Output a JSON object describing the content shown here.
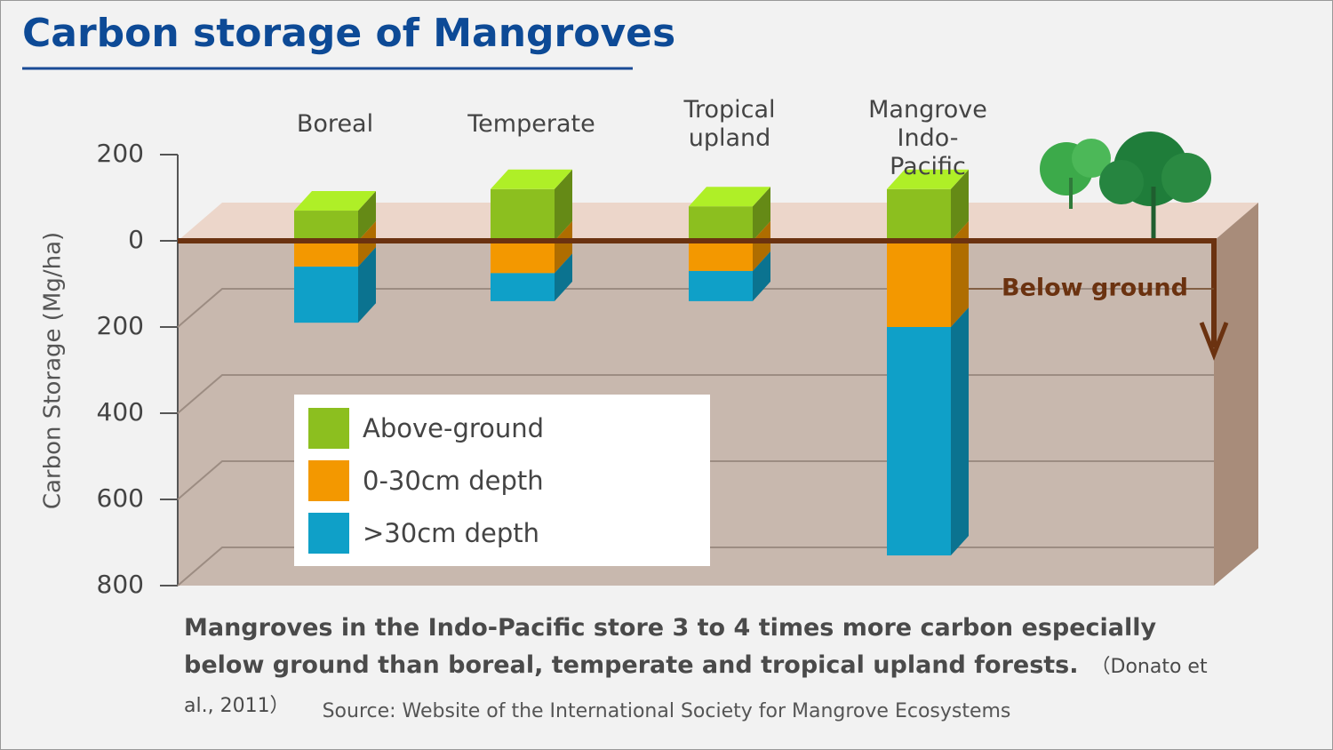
{
  "chart_data": {
    "type": "bar",
    "title": "Carbon storage of Mangroves",
    "y_label": "Carbon Storage (Mg/ha)",
    "annotation": "Below ground",
    "caption": "Mangroves in the Indo-Pacific store 3 to 4 times more carbon especially below ground than boreal, temperate and tropical upland forests.",
    "citation": "（Donato et al., 2011）",
    "source": "Source: Website of the International Society for Mangrove Ecosystems",
    "categories": [
      "Boreal",
      "Temperate",
      "Tropical upland",
      "Mangrove Indo-Pacific"
    ],
    "series": [
      {
        "name": "Above-ground",
        "color": "#8cbf1f",
        "values": [
          70,
          120,
          80,
          120
        ]
      },
      {
        "name": "0-30cm depth",
        "color": "#f39800",
        "values": [
          -60,
          -75,
          -70,
          -200
        ]
      },
      {
        "name": ">30cm depth",
        "color": "#0fa0c8",
        "values": [
          -130,
          -65,
          -70,
          -530
        ]
      }
    ],
    "ylim": [
      -800,
      200
    ],
    "yticks": [
      {
        "value": 200,
        "label": "200"
      },
      0,
      {
        "value": -200,
        "label": "200"
      },
      {
        "value": -400,
        "label": "400"
      },
      {
        "value": -600,
        "label": "600"
      },
      {
        "value": -800,
        "label": "800"
      }
    ],
    "grid": true
  }
}
